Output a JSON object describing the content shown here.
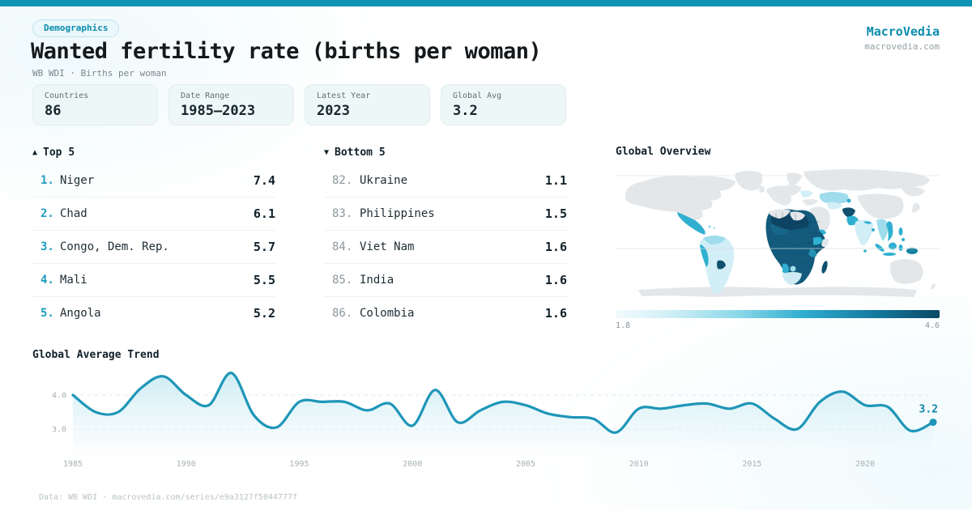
{
  "brand": {
    "name": "MacroVedia",
    "domain": "macrovedia.com"
  },
  "header": {
    "badge": "Demographics",
    "title": "Wanted fertility rate (births per woman)",
    "subtitle": "WB WDI · Births per woman"
  },
  "stats": [
    {
      "label": "Countries",
      "value": "86"
    },
    {
      "label": "Date Range",
      "value": "1985–2023"
    },
    {
      "label": "Latest Year",
      "value": "2023"
    },
    {
      "label": "Global Avg",
      "value": "3.2"
    }
  ],
  "top5": {
    "icon": "▲",
    "heading": "Top 5",
    "rows": [
      {
        "rank": "1.",
        "country": "Niger",
        "value": "7.4"
      },
      {
        "rank": "2.",
        "country": "Chad",
        "value": "6.1"
      },
      {
        "rank": "3.",
        "country": "Congo, Dem. Rep.",
        "value": "5.7"
      },
      {
        "rank": "4.",
        "country": "Mali",
        "value": "5.5"
      },
      {
        "rank": "5.",
        "country": "Angola",
        "value": "5.2"
      }
    ]
  },
  "bottom5": {
    "icon": "▼",
    "heading": "Bottom 5",
    "rows": [
      {
        "rank": "82.",
        "country": "Ukraine",
        "value": "1.1"
      },
      {
        "rank": "83.",
        "country": "Philippines",
        "value": "1.5"
      },
      {
        "rank": "84.",
        "country": "Viet Nam",
        "value": "1.6"
      },
      {
        "rank": "85.",
        "country": "India",
        "value": "1.6"
      },
      {
        "rank": "86.",
        "country": "Colombia",
        "value": "1.6"
      }
    ]
  },
  "map": {
    "heading": "Global Overview",
    "scale_min": "1.8",
    "scale_max": "4.6"
  },
  "trend": {
    "heading": "Global Average Trend"
  },
  "footer": {
    "text": "Data: WB WDI · macrovedia.com/series/e9a3127f5044777f"
  },
  "colors": {
    "accent_bar": "#0e93b5",
    "accent_text": "#0a8cad",
    "trend_line": "#1e96b8",
    "map_high": "#10506e",
    "map_mid": "#30b0d0",
    "map_low": "#d2eef6",
    "map_no_data": "#e4e7ea"
  },
  "chart_data": [
    {
      "type": "line",
      "title": "Global Average Trend",
      "x": [
        1985,
        1986,
        1987,
        1988,
        1989,
        1990,
        1991,
        1992,
        1993,
        1994,
        1995,
        1996,
        1997,
        1998,
        1999,
        2000,
        2001,
        2002,
        2003,
        2004,
        2005,
        2006,
        2007,
        2008,
        2009,
        2010,
        2011,
        2012,
        2013,
        2014,
        2015,
        2016,
        2017,
        2018,
        2019,
        2020,
        2021,
        2022,
        2023
      ],
      "values": [
        4.0,
        3.5,
        3.5,
        4.2,
        4.55,
        4.0,
        3.7,
        4.65,
        3.4,
        3.05,
        3.8,
        3.8,
        3.8,
        3.55,
        3.75,
        3.1,
        4.15,
        3.2,
        3.55,
        3.8,
        3.7,
        3.45,
        3.35,
        3.3,
        2.9,
        3.6,
        3.6,
        3.7,
        3.75,
        3.6,
        3.75,
        3.3,
        3.0,
        3.8,
        4.1,
        3.7,
        3.65,
        2.95,
        3.2
      ],
      "xticks": [
        1985,
        1990,
        1995,
        2000,
        2005,
        2010,
        2015,
        2020
      ],
      "yticks": [
        3.0,
        4.0
      ],
      "ylim": [
        2.5,
        5.0
      ],
      "end_label": "3.2",
      "grid": "dashed-horizontal",
      "legend": "none",
      "line_color": "#1e96b8"
    },
    {
      "type": "choropleth",
      "title": "Global Overview",
      "scale": {
        "min": 1.8,
        "max": 4.6
      },
      "note": "Wanted fertility rate by country: darkest teal across Sub-Saharan Africa and Afghanistan; medium teal in Mexico, Pakistan, Ethiopia, SE Asia islands; palest in South America, India, Central Asia; gray = no data."
    }
  ]
}
